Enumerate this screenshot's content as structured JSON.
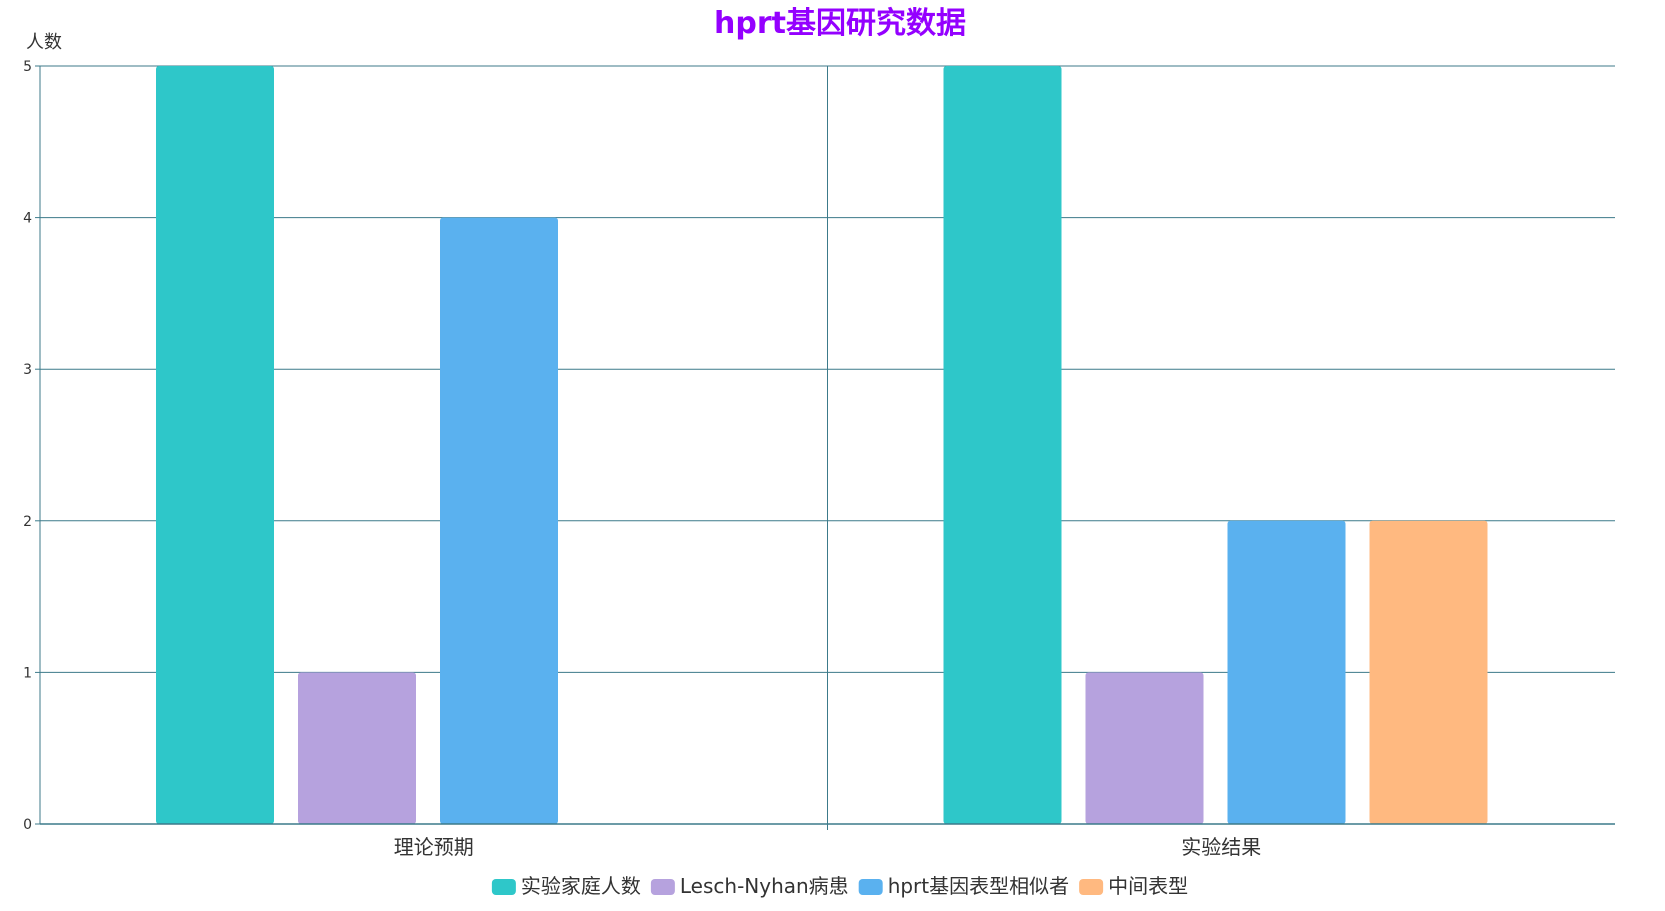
{
  "chart_data": {
    "type": "bar",
    "title": "hprt基因研究数据",
    "title_color": "#9400ff",
    "xlabel": "",
    "ylabel": "人数",
    "ylim": [
      0,
      5
    ],
    "yticks": [
      0,
      1,
      2,
      3,
      4,
      5
    ],
    "grid": true,
    "legend_position": "bottom-center",
    "categories": [
      "理论预期",
      "实验结果"
    ],
    "series": [
      {
        "name": "实验家庭人数",
        "values": [
          5,
          5
        ],
        "color": "#2ec7c9"
      },
      {
        "name": "Lesch-Nyhan病患",
        "values": [
          1,
          1
        ],
        "color": "#b6a2de"
      },
      {
        "name": "hprt基因表型相似者",
        "values": [
          4,
          2
        ],
        "color": "#5ab1ef"
      },
      {
        "name": "中间表型",
        "values": [
          null,
          2
        ],
        "color": "#ffb980"
      }
    ],
    "axis_color": "#3c7a8a"
  }
}
